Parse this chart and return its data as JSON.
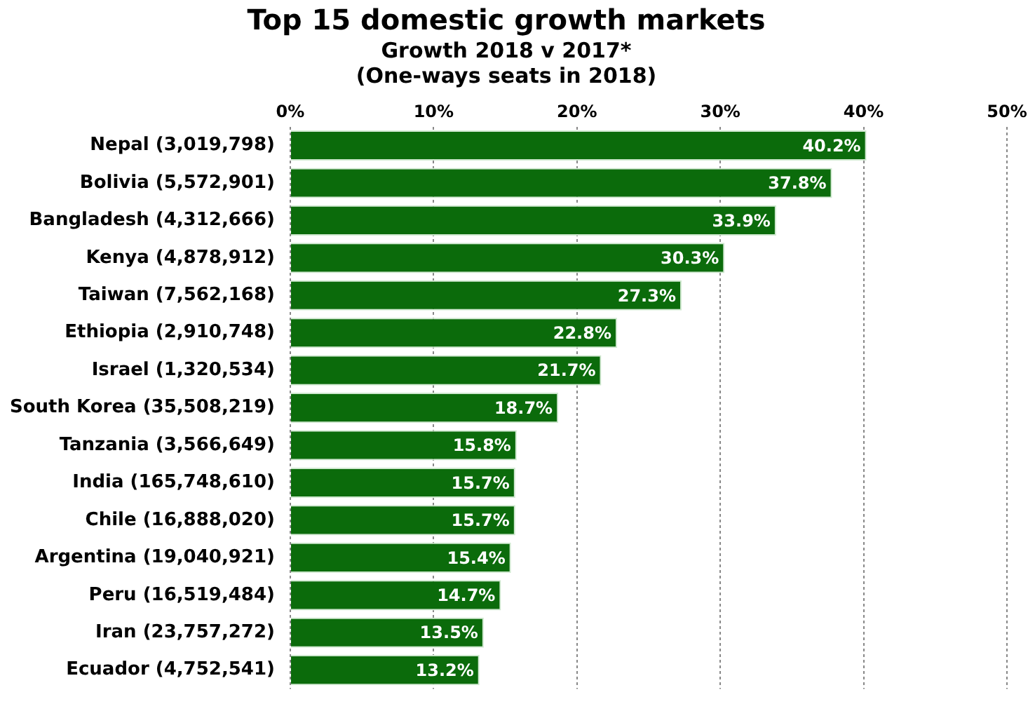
{
  "chart_data": {
    "type": "bar",
    "orientation": "horizontal",
    "title": "Top 15 domestic growth markets",
    "subtitle": "Growth 2018 v 2017*\n(One-ways seats in 2018)",
    "categories": [
      "Nepal (3,019,798)",
      "Bolivia (5,572,901)",
      "Bangladesh (4,312,666)",
      "Kenya (4,878,912)",
      "Taiwan (7,562,168)",
      "Ethiopia (2,910,748)",
      "Israel (1,320,534)",
      "South Korea (35,508,219)",
      "Tanzania (3,566,649)",
      "India (165,748,610)",
      "Chile (16,888,020)",
      "Argentina (19,040,921)",
      "Peru (16,519,484)",
      "Iran (23,757,272)",
      "Ecuador (4,752,541)"
    ],
    "values": [
      40.2,
      37.8,
      33.9,
      30.3,
      27.3,
      22.8,
      21.7,
      18.7,
      15.8,
      15.7,
      15.7,
      15.4,
      14.7,
      13.5,
      13.2
    ],
    "value_labels": [
      "40.2%",
      "37.8%",
      "33.9%",
      "30.3%",
      "27.3%",
      "22.8%",
      "21.7%",
      "18.7%",
      "15.8%",
      "15.7%",
      "15.7%",
      "15.4%",
      "14.7%",
      "13.5%",
      "13.2%"
    ],
    "color": "#0b6b0b",
    "xlim": [
      0,
      50
    ],
    "xticks": [
      {
        "value": 0,
        "label": "0%"
      },
      {
        "value": 10,
        "label": "10%"
      },
      {
        "value": 20,
        "label": "20%"
      },
      {
        "value": 30,
        "label": "30%"
      },
      {
        "value": 40,
        "label": "40%"
      },
      {
        "value": 50,
        "label": "50%"
      }
    ],
    "grid": "x",
    "legend": false
  }
}
